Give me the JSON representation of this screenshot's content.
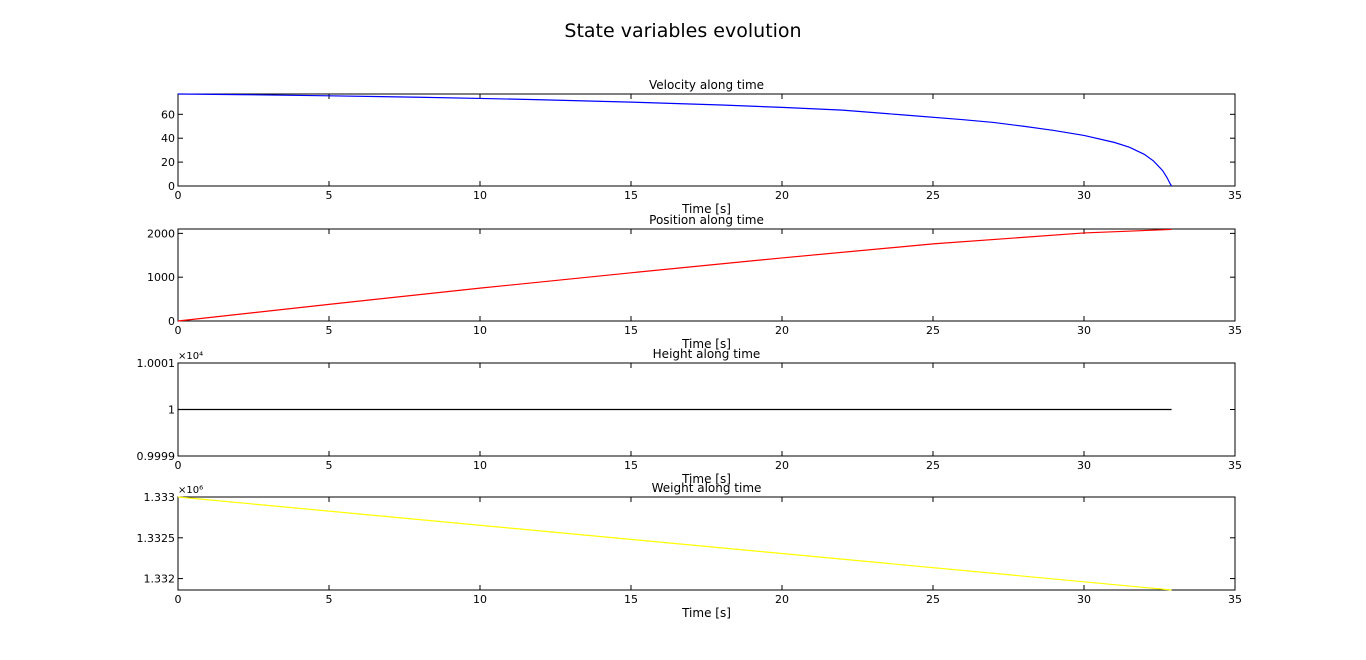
{
  "figure": {
    "title": "State variables evolution"
  },
  "chart_data": [
    {
      "type": "line",
      "title": "Velocity along time",
      "xlabel": "Time [s]",
      "ylabel": "",
      "xlim": [
        0,
        35
      ],
      "ylim": [
        0,
        77
      ],
      "xticks": [
        0,
        5,
        10,
        15,
        20,
        25,
        30,
        35
      ],
      "yticks": [
        0,
        20,
        40,
        60
      ],
      "ytick_labels": [
        "0",
        "20",
        "40",
        "60"
      ],
      "exponent_label": "",
      "grid": false,
      "color": "#0000ff",
      "series": [
        {
          "x": [
            0,
            2,
            5,
            8,
            10,
            12,
            15,
            18,
            20,
            22,
            24,
            26,
            27,
            28,
            29,
            30,
            31,
            31.5,
            32,
            32.3,
            32.6,
            32.75,
            32.85,
            32.9
          ],
          "y": [
            77,
            76.5,
            75.5,
            74.3,
            73.3,
            72.2,
            70.2,
            67.8,
            65.8,
            63.5,
            59.5,
            55.5,
            53.2,
            50,
            46.5,
            42.3,
            36.5,
            32.5,
            26.5,
            21,
            13,
            7,
            2,
            0
          ]
        }
      ]
    },
    {
      "type": "line",
      "title": "Position along time",
      "xlabel": "Time [s]",
      "ylabel": "",
      "xlim": [
        0,
        35
      ],
      "ylim": [
        0,
        2100
      ],
      "xticks": [
        0,
        5,
        10,
        15,
        20,
        25,
        30,
        35
      ],
      "yticks": [
        0,
        1000,
        2000
      ],
      "ytick_labels": [
        "0",
        "1000",
        "2000"
      ],
      "exponent_label": "",
      "grid": false,
      "color": "#ff0000",
      "series": [
        {
          "x": [
            0,
            5,
            10,
            15,
            20,
            25,
            30,
            32.9
          ],
          "y": [
            0,
            380,
            750,
            1100,
            1440,
            1760,
            2010,
            2090
          ]
        }
      ]
    },
    {
      "type": "line",
      "title": "Height along time",
      "xlabel": "Time [s]",
      "ylabel": "",
      "xlim": [
        0,
        35
      ],
      "ylim": [
        0.9999,
        1.0001
      ],
      "xticks": [
        0,
        5,
        10,
        15,
        20,
        25,
        30,
        35
      ],
      "yticks": [
        0.9999,
        1,
        1.0001
      ],
      "ytick_labels": [
        "0.9999",
        "1",
        "1.0001"
      ],
      "exponent_label": "×10⁴",
      "grid": false,
      "color": "#000000",
      "series": [
        {
          "x": [
            0,
            32.9
          ],
          "y": [
            1,
            1
          ]
        }
      ]
    },
    {
      "type": "line",
      "title": "Weight along time",
      "xlabel": "Time [s]",
      "ylabel": "",
      "xlim": [
        0,
        35
      ],
      "ylim": [
        1.33186,
        1.333
      ],
      "xticks": [
        0,
        5,
        10,
        15,
        20,
        25,
        30,
        35
      ],
      "yticks": [
        1.332,
        1.3325,
        1.333
      ],
      "ytick_labels": [
        "1.332",
        "1.3325",
        "1.333"
      ],
      "exponent_label": "×10⁶",
      "grid": false,
      "color": "#ffff00",
      "series": [
        {
          "x": [
            0,
            32.9
          ],
          "y": [
            1.333,
            1.33186
          ]
        }
      ]
    }
  ]
}
